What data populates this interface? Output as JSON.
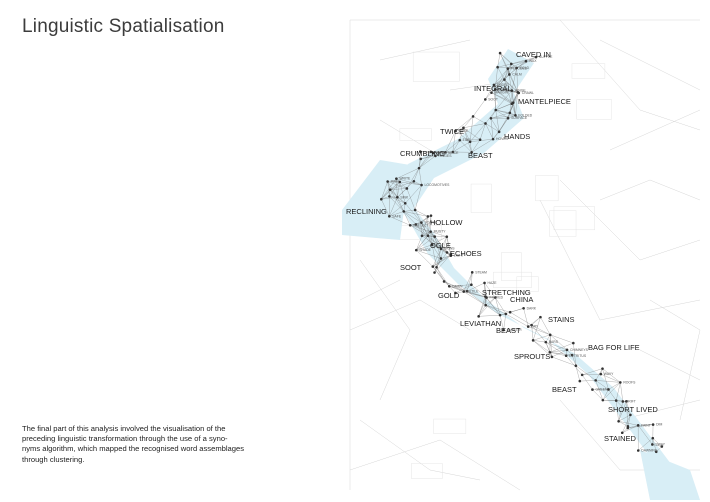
{
  "page": {
    "title": "Linguistic Spatialisation",
    "caption": [
      "The final part of this analysis involved the visualisation of the",
      "preceding linguistic transformation through the use of a syno-",
      "nyms algorithm, which mapped the recognised word assemblages",
      "through clustering."
    ]
  },
  "network": {
    "river_color": "#d8eef6",
    "edge_color": "#6f6f6f",
    "node_color": "#333333",
    "base_map_color": "#d7d7d7",
    "labels": [
      "CAVED IN",
      "INTEGRAL",
      "MANTELPIECE",
      "TWICE",
      "HANDS",
      "CRUMBLING",
      "BEAST",
      "RECLINING",
      "HOLLOW",
      "OGLE",
      "ECHOES",
      "SOOT",
      "STRETCHING",
      "GOLD",
      "CHINA",
      "LEVIATHAN",
      "STAINS",
      "BEAST",
      "BAG FOR LIFE",
      "SPROUTS",
      "BEAST",
      "SHORT LIVED",
      "STAINED"
    ],
    "minor_labels": [
      "SUPPLE",
      "FLOODED",
      "ENDED",
      "HINGE",
      "MARGIN",
      "SOOT",
      "SURFACE",
      "FOLDED",
      "HOVER",
      "EDGE",
      "TIDE",
      "IMPORTANCE",
      "HINGES",
      "WRITE",
      "LOCOMOTIVES",
      "RISE",
      "SINK",
      "SAFE",
      "REFLECT",
      "MUSTY",
      "SCARS",
      "SIGNS",
      "SHADE",
      "LIGHT",
      "STEAM",
      "DAWN",
      "HAZE",
      "FUTILE",
      "FRAYED",
      "DARK",
      "SMOOTH",
      "DRY",
      "CHIMNEYS",
      "BARS",
      "DETRITUS",
      "WAVY",
      "ROOFS",
      "GREEN",
      "DRIFT",
      "FAINT",
      "DIM",
      "DAWNING",
      "SWAY",
      "WAX",
      "CALM",
      "COLD",
      "CRAWL",
      "DUSK"
    ]
  }
}
